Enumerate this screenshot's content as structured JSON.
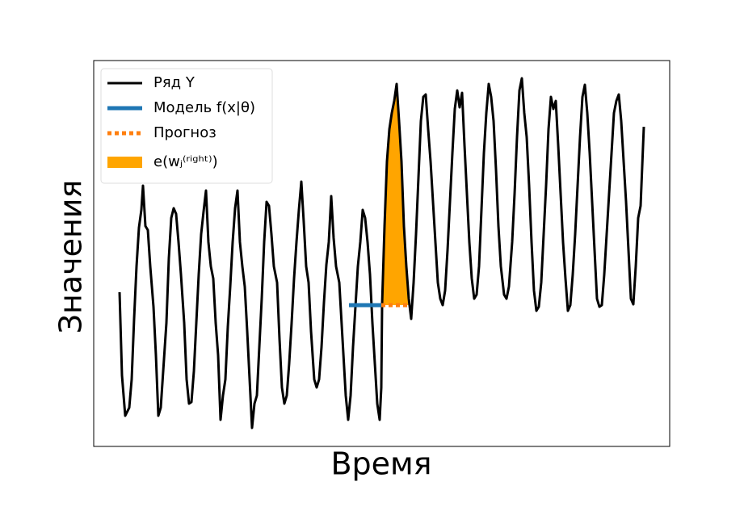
{
  "chart_data": {
    "type": "line",
    "xlabel": "Время",
    "ylabel": "Значения",
    "xlim": [
      0,
      713
    ],
    "ylim": [
      0,
      478
    ],
    "legend": "upper left",
    "series": [
      {
        "name": "Ряд Y",
        "color": "#000000",
        "style": "solid",
        "x": [
          32,
          35,
          39,
          44,
          47,
          50,
          53,
          56,
          59,
          61,
          64,
          67,
          70,
          74,
          77,
          80,
          83,
          86,
          90,
          93,
          96,
          99,
          102,
          105,
          108,
          112,
          115,
          118,
          121,
          124,
          127,
          130,
          133,
          136,
          139,
          142,
          145,
          148,
          151,
          154,
          157,
          160,
          163,
          166,
          169,
          172,
          175,
          178,
          181,
          184,
          187,
          190,
          193,
          196,
          199,
          202,
          205,
          208,
          211,
          214,
          217,
          220,
          223,
          227,
          230,
          233,
          236,
          239,
          242,
          245,
          248,
          251,
          254,
          257,
          260,
          263,
          266,
          269,
          273,
          276,
          279,
          282,
          285,
          288,
          291,
          294,
          297,
          300,
          304,
          308,
          312,
          315,
          318,
          321,
          324,
          327,
          330,
          333,
          336,
          339,
          342,
          345,
          348,
          351,
          354,
          356,
          357,
          360,
          363,
          366,
          369,
          372,
          375,
          378,
          381,
          384,
          387,
          390,
          393,
          396,
          399,
          402,
          405,
          408,
          411,
          414,
          417,
          420,
          423,
          426,
          429,
          432,
          435,
          438,
          441,
          444,
          447,
          450,
          453,
          456,
          459,
          462,
          465,
          468,
          471,
          474,
          477,
          480,
          483,
          486,
          489,
          492,
          495,
          498,
          501,
          504,
          508,
          511,
          514,
          518,
          521,
          524,
          527,
          530,
          533,
          536,
          539,
          542,
          545,
          548,
          551,
          554,
          557,
          560,
          563,
          566,
          569,
          572,
          575,
          578,
          581,
          584,
          587,
          590,
          593,
          596,
          599,
          602,
          605,
          608,
          611,
          614,
          617,
          620,
          623,
          626,
          629,
          632,
          635,
          638,
          641,
          644,
          647,
          650,
          653,
          656,
          659,
          662,
          665,
          668,
          671,
          674,
          677,
          681
        ],
        "values": [
          191,
          88,
          38,
          48,
          83,
          158,
          223,
          271,
          293,
          323,
          273,
          268,
          223,
          173,
          113,
          38,
          48,
          93,
          153,
          233,
          283,
          295,
          288,
          253,
          213,
          153,
          83,
          53,
          55,
          93,
          153,
          213,
          263,
          291,
          317,
          253,
          223,
          208,
          153,
          113,
          33,
          63,
          83,
          148,
          198,
          253,
          295,
          317,
          253,
          223,
          198,
          143,
          83,
          23,
          53,
          63,
          123,
          183,
          253,
          303,
          298,
          263,
          223,
          203,
          133,
          73,
          53,
          63,
          103,
          153,
          208,
          253,
          293,
          328,
          278,
          223,
          203,
          143,
          83,
          73,
          83,
          123,
          178,
          225,
          253,
          310,
          258,
          223,
          203,
          133,
          63,
          33,
          63,
          123,
          173,
          223,
          253,
          293,
          283,
          253,
          213,
          153,
          103,
          53,
          33,
          73,
          176,
          273,
          353,
          393,
          413,
          428,
          449,
          403,
          353,
          273,
          223,
          183,
          158,
          203,
          263,
          333,
          403,
          433,
          436,
          393,
          353,
          303,
          253,
          203,
          183,
          175,
          193,
          243,
          303,
          363,
          418,
          441,
          420,
          438,
          373,
          313,
          253,
          208,
          183,
          188,
          223,
          293,
          363,
          413,
          449,
          433,
          403,
          343,
          273,
          223,
          188,
          183,
          198,
          253,
          313,
          383,
          441,
          456,
          413,
          383,
          323,
          253,
          193,
          168,
          173,
          203,
          263,
          323,
          393,
          433,
          418,
          428,
          373,
          313,
          253,
          208,
          168,
          175,
          213,
          263,
          323,
          383,
          433,
          448,
          413,
          363,
          303,
          243,
          183,
          173,
          175,
          213,
          263,
          313,
          363,
          413,
          428,
          436,
          403,
          353,
          303,
          243,
          183,
          176,
          223,
          283,
          298,
          396
        ]
      },
      {
        "name": "Модель f(x|θ)",
        "color": "#1f77b4",
        "style": "solid",
        "x": [
          316,
          356
        ],
        "values": [
          175,
          175
        ]
      },
      {
        "name": "Прогноз",
        "color": "#ff7f0e",
        "style": "dotted",
        "x": [
          356,
          392
        ],
        "values": [
          175,
          175
        ]
      },
      {
        "name": "e(wⱼ⁽ʳⁱᵍʰᵗ⁾)",
        "color": "#ffa500",
        "style": "area",
        "baseline": 175,
        "x": [
          357,
          360,
          363,
          366,
          369,
          372,
          375,
          378,
          381,
          384,
          387,
          390
        ],
        "values": [
          176,
          273,
          353,
          393,
          413,
          428,
          449,
          403,
          353,
          273,
          223,
          183
        ]
      }
    ]
  }
}
